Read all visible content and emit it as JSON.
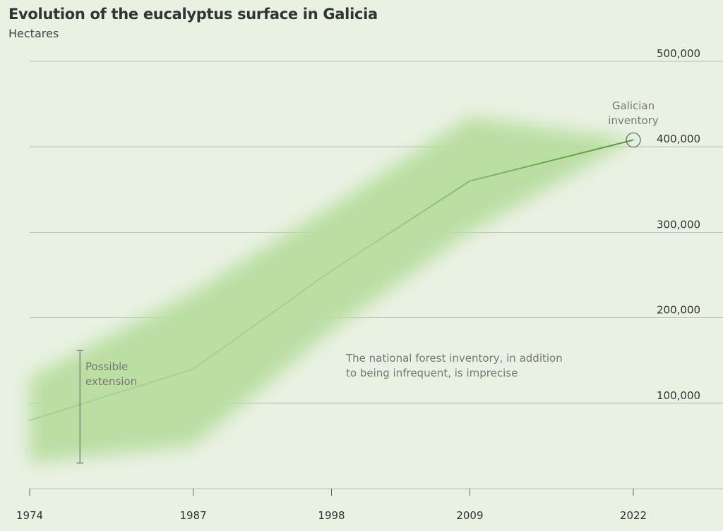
{
  "chart_data": {
    "type": "line",
    "title": "Evolution of the eucalyptus surface in Galicia",
    "subtitle": "Hectares",
    "x": [
      1974,
      1987,
      1998,
      2009,
      2022
    ],
    "x_tick_labels": [
      "1974",
      "1987",
      "1998",
      "2009",
      "2022"
    ],
    "y_ticks": [
      100000,
      200000,
      300000,
      400000,
      500000
    ],
    "y_tick_labels": [
      "100,000",
      "200,000",
      "300,000",
      "400,000",
      "500,000"
    ],
    "ylim": [
      0,
      500000
    ],
    "grid": true,
    "series": [
      {
        "values": [
          80000,
          140000,
          255000,
          360000,
          408000
        ],
        "uncertainty_band": {
          "upper": [
            130000,
            230000,
            330000,
            435000,
            408000
          ],
          "lower": [
            30000,
            50000,
            185000,
            300000,
            408000
          ]
        },
        "color": "#4e9a3a"
      }
    ],
    "possible_extension_bar": {
      "x": 1978,
      "low": 30000,
      "high": 162000
    },
    "endpoint_marker": {
      "x": 2022,
      "y": 408000
    },
    "annotations": {
      "possible_extension": [
        "Possible",
        "extension"
      ],
      "galician_inventory": [
        "Galician",
        "inventory"
      ],
      "national_inventory": [
        "The national forest inventory, in addition",
        "to being infrequent, is imprecise"
      ]
    },
    "colors": {
      "background": "#e8f1e2",
      "band": "#b9dea0",
      "line_faint": "#a9cf93",
      "line_strong": "#4e9a3a"
    }
  }
}
